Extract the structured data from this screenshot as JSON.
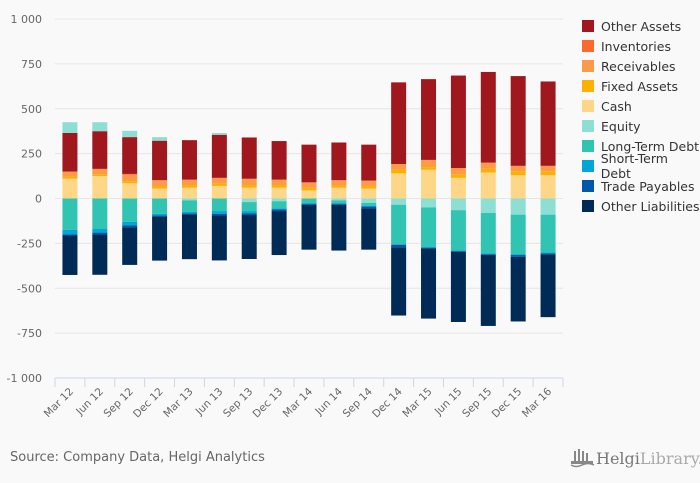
{
  "chart_data": {
    "type": "bar",
    "stacked": true,
    "title": "",
    "xlabel": "",
    "ylabel": "",
    "ylim": [
      -1000,
      1000
    ],
    "yticks": [
      1000,
      750,
      500,
      250,
      0,
      -250,
      -500,
      -750,
      -1000
    ],
    "ytick_labels": [
      "1 000",
      "750",
      "500",
      "250",
      "0",
      "-250",
      "-500",
      "-750",
      "-1 000"
    ],
    "grid": true,
    "legend_position": "right",
    "categories": [
      "Mar 12",
      "Jun 12",
      "Sep 12",
      "Dec 12",
      "Mar 13",
      "Jun 13",
      "Sep 13",
      "Dec 13",
      "Mar 14",
      "Jun 14",
      "Sep 14",
      "Dec 14",
      "Mar 15",
      "Jun 15",
      "Sep 15",
      "Dec 15",
      "Mar 16"
    ],
    "series": [
      {
        "name": "Other Assets",
        "color": "#a0171e",
        "values": [
          215,
          210,
          205,
          220,
          220,
          240,
          230,
          215,
          210,
          210,
          200,
          455,
          450,
          515,
          505,
          500,
          470
        ]
      },
      {
        "name": "Inventories",
        "color": "#fb6a2c",
        "values": [
          0,
          0,
          5,
          0,
          0,
          0,
          0,
          0,
          0,
          0,
          0,
          0,
          0,
          0,
          0,
          0,
          0
        ]
      },
      {
        "name": "Receivables",
        "color": "#fd9a4a",
        "values": [
          28,
          30,
          35,
          35,
          30,
          30,
          35,
          30,
          30,
          30,
          30,
          30,
          40,
          35,
          35,
          30,
          30
        ]
      },
      {
        "name": "Fixed Assets",
        "color": "#fcb100",
        "values": [
          12,
          10,
          12,
          12,
          15,
          15,
          15,
          15,
          15,
          12,
          15,
          22,
          15,
          20,
          20,
          22,
          22
        ]
      },
      {
        "name": "Cash",
        "color": "#fdd687",
        "values": [
          110,
          125,
          85,
          55,
          60,
          70,
          60,
          60,
          45,
          60,
          55,
          140,
          160,
          115,
          145,
          130,
          130
        ]
      },
      {
        "name": "Equity",
        "color": "#8ddfd3",
        "values": [
          60,
          50,
          35,
          20,
          -10,
          10,
          -20,
          -15,
          0,
          -10,
          -25,
          -35,
          -50,
          -65,
          -80,
          -90,
          -90
        ]
      },
      {
        "name": "Long-Term Debt",
        "color": "#32c4b2",
        "values": [
          -175,
          -170,
          -130,
          -85,
          -65,
          -70,
          -50,
          -40,
          -25,
          -15,
          -15,
          -220,
          -220,
          -225,
          -225,
          -220,
          -210
        ]
      },
      {
        "name": "Short-Term Debt",
        "color": "#00a6d6",
        "values": [
          -25,
          -20,
          -20,
          -10,
          -8,
          -15,
          -12,
          -5,
          -5,
          -5,
          -5,
          -2,
          -4,
          -3,
          -5,
          -5,
          -6
        ]
      },
      {
        "name": "Trade Payables",
        "color": "#0058a9",
        "values": [
          -6,
          -10,
          -10,
          -6,
          -5,
          -10,
          -10,
          -10,
          -5,
          -5,
          -10,
          -15,
          -5,
          -5,
          -5,
          -10,
          -5
        ]
      },
      {
        "name": "Other Liabilities",
        "color": "#002b56",
        "values": [
          -220,
          -225,
          -210,
          -245,
          -250,
          -250,
          -245,
          -245,
          -250,
          -255,
          -230,
          -380,
          -390,
          -390,
          -395,
          -360,
          -350
        ]
      }
    ],
    "legend_order": [
      "Other Assets",
      "Inventories",
      "Receivables",
      "Fixed Assets",
      "Cash",
      "Equity",
      "Long-Term Debt",
      "Short-Term Debt",
      "Trade Payables",
      "Other Liabilities"
    ],
    "positive_stack_order": [
      "Cash",
      "Fixed Assets",
      "Receivables",
      "Inventories",
      "Other Assets",
      "Equity"
    ],
    "negative_stack_order": [
      "Equity",
      "Long-Term Debt",
      "Short-Term Debt",
      "Trade Payables",
      "Other Liabilities"
    ]
  },
  "footer": {
    "source": "Source: Company Data, Helgi Analytics",
    "logo_primary": "Helgi",
    "logo_secondary": "Library."
  }
}
